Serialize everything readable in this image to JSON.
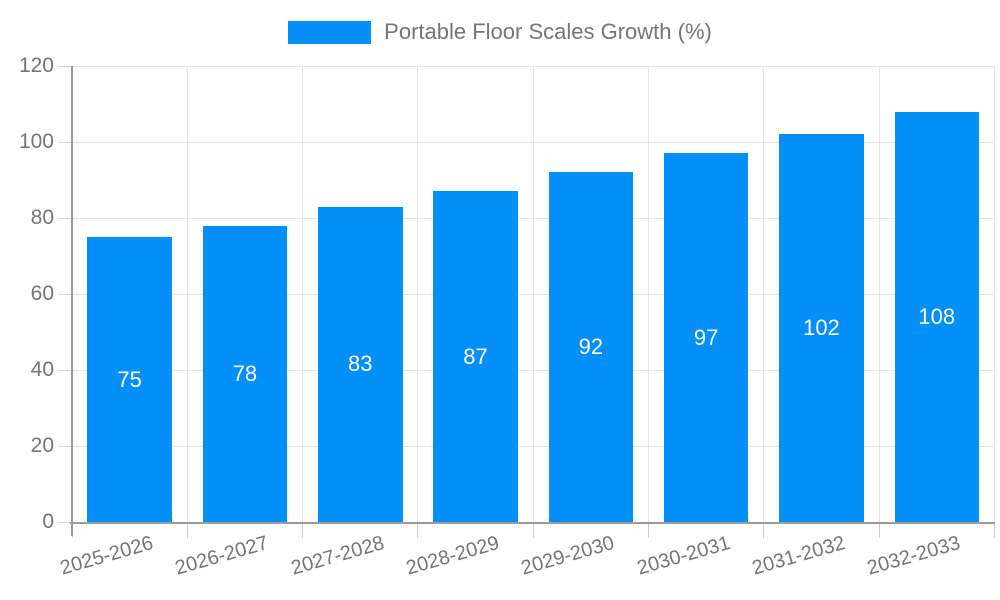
{
  "legend": {
    "label": "Portable Floor Scales Growth (%)"
  },
  "chart_data": {
    "type": "bar",
    "title": "Portable Floor Scales Growth (%)",
    "categories": [
      "2025-2026",
      "2026-2027",
      "2027-2028",
      "2028-2029",
      "2029-2030",
      "2030-2031",
      "2031-2032",
      "2032-2033"
    ],
    "values": [
      75,
      78,
      83,
      87,
      92,
      97,
      102,
      108
    ],
    "xlabel": "",
    "ylabel": "",
    "ylim": [
      0,
      120
    ],
    "yticks": [
      0,
      20,
      40,
      60,
      80,
      100,
      120
    ],
    "grid": true,
    "legend_position": "top",
    "bar_color": "#058ff8",
    "data_label_color": "#ffffff",
    "axis_text_color": "#757575",
    "gridline_color": "#e6e6e6",
    "axis_line_color": "#9c9c9c"
  }
}
